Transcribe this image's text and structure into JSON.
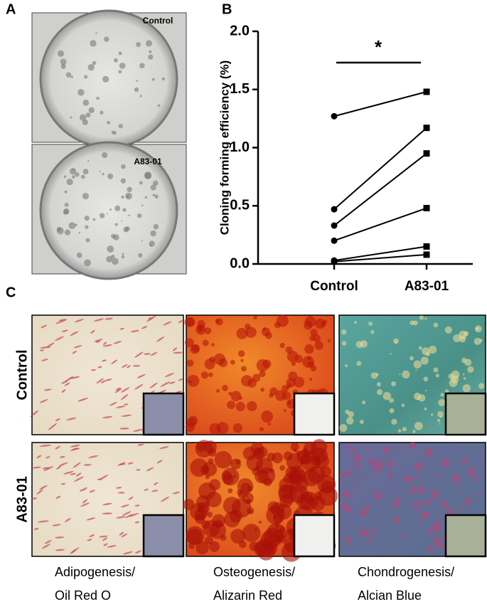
{
  "panel_labels": {
    "a": "A",
    "b": "B",
    "c": "C"
  },
  "dish_labels": [
    "Control",
    "A83-01"
  ],
  "chart_data": {
    "type": "paired-line",
    "ylabel": "Cloning forming efficiency (%)",
    "categories": [
      "Control",
      "A83-01"
    ],
    "series": [
      {
        "color": "#000000",
        "values": [
          1.27,
          1.48
        ]
      },
      {
        "color": "#000000",
        "values": [
          0.47,
          1.17
        ]
      },
      {
        "color": "#000000",
        "values": [
          0.33,
          0.95
        ]
      },
      {
        "color": "#000000",
        "values": [
          0.2,
          0.48
        ]
      },
      {
        "color": "#000000",
        "values": [
          0.03,
          0.15
        ]
      },
      {
        "color": "#000000",
        "values": [
          0.02,
          0.08
        ]
      }
    ],
    "markers": [
      "circle",
      "square"
    ],
    "ylim": [
      0,
      2
    ],
    "yticks": [
      {
        "value": 0,
        "label": "0.0"
      },
      0.5,
      {
        "value": 1,
        "label": "1.0"
      },
      1.5,
      {
        "value": 2,
        "label": "2.0"
      }
    ],
    "annotation": "*"
  },
  "staining": {
    "rows": [
      "Control",
      "A83-01"
    ],
    "columns": [
      [
        "Adipogenesis/",
        "Oil Red O"
      ],
      [
        "Osteogenesis/",
        "Alizarin Red"
      ],
      [
        "Chondrogenesis/",
        "Alcian Blue"
      ]
    ]
  }
}
